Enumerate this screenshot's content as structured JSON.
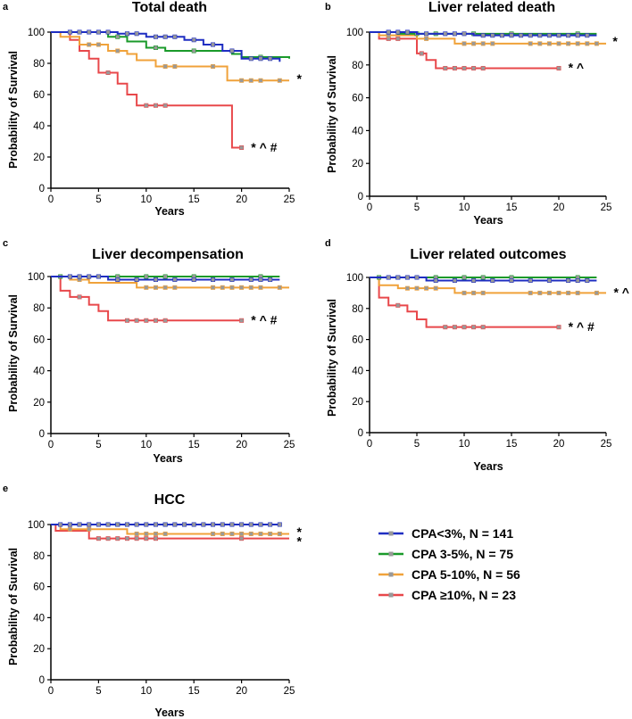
{
  "colors": {
    "cpa_lt3": "#1f2ec2",
    "cpa_3_5": "#1a9a2a",
    "cpa_5_10": "#f0a23a",
    "cpa_ge10": "#e8484b",
    "censor": "#999999"
  },
  "legend": [
    {
      "key": "cpa_lt3",
      "label": "CPA<3%, N = 141"
    },
    {
      "key": "cpa_3_5",
      "label": "CPA 3-5%, N = 75"
    },
    {
      "key": "cpa_5_10",
      "label": "CPA 5-10%, N = 56"
    },
    {
      "key": "cpa_ge10",
      "label": "CPA ≥10%, N = 23"
    }
  ],
  "chart_data": [
    {
      "panel": "a",
      "type": "line",
      "title": "Total death",
      "xlabel": "Years",
      "ylabel": "Probability of Survival",
      "xlim": [
        0,
        25
      ],
      "ylim": [
        0,
        100
      ],
      "xticks": [
        "0",
        "5",
        "10",
        "15",
        "20",
        "25"
      ],
      "yticks": [
        "0",
        "20",
        "40",
        "60",
        "80",
        "100"
      ],
      "series": [
        {
          "key": "cpa_lt3",
          "name": "CPA<3%, N = 141",
          "steps": [
            [
              0,
              100
            ],
            [
              7,
              99
            ],
            [
              10,
              97
            ],
            [
              14,
              95
            ],
            [
              16,
              92
            ],
            [
              18,
              88
            ],
            [
              20,
              83
            ],
            [
              24,
              81
            ]
          ],
          "censor": [
            2,
            3,
            4,
            5,
            6,
            8,
            9,
            11,
            12,
            13,
            15,
            17,
            19,
            21,
            22,
            23
          ]
        },
        {
          "key": "cpa_3_5",
          "name": "CPA 3-5%, N = 75",
          "steps": [
            [
              0,
              100
            ],
            [
              6,
              97
            ],
            [
              8,
              94
            ],
            [
              10,
              90
            ],
            [
              12,
              88
            ],
            [
              19,
              86
            ],
            [
              20,
              84
            ],
            [
              25,
              83
            ]
          ],
          "censor": [
            3,
            5,
            7,
            11,
            15,
            22
          ]
        },
        {
          "key": "cpa_5_10",
          "name": "CPA 5-10%, N = 56",
          "steps": [
            [
              0,
              100
            ],
            [
              1,
              97
            ],
            [
              3,
              92
            ],
            [
              6,
              88
            ],
            [
              8,
              86
            ],
            [
              9,
              82
            ],
            [
              11,
              78
            ],
            [
              18.5,
              69
            ],
            [
              25,
              69
            ]
          ],
          "censor": [
            4,
            5,
            7,
            12,
            13,
            17,
            20,
            21,
            22,
            24
          ]
        },
        {
          "key": "cpa_ge10",
          "name": "CPA ≥10%, N = 23",
          "steps": [
            [
              0,
              100
            ],
            [
              2,
              95
            ],
            [
              3,
              88
            ],
            [
              4,
              83
            ],
            [
              5,
              74
            ],
            [
              7,
              67
            ],
            [
              8,
              60
            ],
            [
              9,
              53
            ],
            [
              19,
              26
            ],
            [
              20,
              26
            ]
          ],
          "censor": [
            6,
            10,
            11,
            12,
            20
          ]
        }
      ],
      "annotations": [
        {
          "text": "*",
          "x": 25.8,
          "y": 71
        },
        {
          "text": "* ^ #",
          "x": 21,
          "y": 27
        }
      ]
    },
    {
      "panel": "b",
      "type": "line",
      "title": "Liver related death",
      "xlabel": "Years",
      "ylabel": "Probability of Survival",
      "xlim": [
        0,
        25
      ],
      "ylim": [
        0,
        100
      ],
      "xticks": [
        "0",
        "5",
        "10",
        "15",
        "20",
        "25"
      ],
      "yticks": [
        "0",
        "20",
        "40",
        "60",
        "80",
        "100"
      ],
      "series": [
        {
          "key": "cpa_lt3",
          "name": "CPA<3%, N = 141",
          "steps": [
            [
              0,
              100
            ],
            [
              5,
              99
            ],
            [
              11,
              98
            ],
            [
              24,
              98
            ]
          ],
          "censor": [
            2,
            3,
            4,
            6,
            8,
            9,
            10,
            12,
            13,
            14,
            15,
            16,
            17,
            18,
            19,
            20,
            21,
            22,
            23
          ]
        },
        {
          "key": "cpa_3_5",
          "name": "CPA 3-5%, N = 75",
          "steps": [
            [
              0,
              100
            ],
            [
              3,
              99
            ],
            [
              24,
              99
            ]
          ],
          "censor": [
            2,
            5,
            7,
            11,
            15,
            22
          ]
        },
        {
          "key": "cpa_5_10",
          "name": "CPA 5-10%, N = 56",
          "steps": [
            [
              0,
              100
            ],
            [
              1,
              98
            ],
            [
              5,
              96
            ],
            [
              9,
              93
            ],
            [
              25,
              93
            ]
          ],
          "censor": [
            2,
            6,
            10,
            11,
            12,
            13,
            17,
            18,
            19,
            20,
            21,
            22,
            23,
            24
          ]
        },
        {
          "key": "cpa_ge10",
          "name": "CPA ≥10%, N = 23",
          "steps": [
            [
              0,
              100
            ],
            [
              1,
              96
            ],
            [
              5,
              87
            ],
            [
              6,
              83
            ],
            [
              7,
              78
            ],
            [
              20,
              78
            ]
          ],
          "censor": [
            2,
            3,
            5.5,
            8,
            9,
            10,
            11,
            12,
            20
          ]
        }
      ],
      "annotations": [
        {
          "text": "*",
          "x": 25.7,
          "y": 95
        },
        {
          "text": "* ^",
          "x": 21,
          "y": 79
        }
      ]
    },
    {
      "panel": "c",
      "type": "line",
      "title": "Liver decompensation",
      "xlabel": "Years",
      "ylabel": "Probability of Survival",
      "xlim": [
        0,
        25
      ],
      "ylim": [
        0,
        100
      ],
      "xticks": [
        "0",
        "5",
        "10",
        "15",
        "20",
        "25"
      ],
      "yticks": [
        "0",
        "20",
        "40",
        "60",
        "80",
        "100"
      ],
      "series": [
        {
          "key": "cpa_lt3",
          "name": "CPA<3%, N = 141",
          "steps": [
            [
              0,
              100
            ],
            [
              6,
              98
            ],
            [
              24,
              98
            ]
          ],
          "censor": [
            2,
            3,
            4,
            5,
            7,
            9,
            11,
            13,
            15,
            17,
            19,
            21,
            22,
            23
          ]
        },
        {
          "key": "cpa_3_5",
          "name": "CPA 3-5%, N = 75",
          "steps": [
            [
              0,
              100
            ],
            [
              24,
              100
            ]
          ],
          "censor": [
            1,
            3,
            5,
            7,
            10,
            12,
            15,
            22
          ]
        },
        {
          "key": "cpa_5_10",
          "name": "CPA 5-10%, N = 56",
          "steps": [
            [
              0,
              100
            ],
            [
              2,
              98
            ],
            [
              4,
              96
            ],
            [
              9,
              93
            ],
            [
              25,
              93
            ]
          ],
          "censor": [
            3,
            10,
            11,
            12,
            13,
            17,
            18,
            19,
            20,
            21,
            22,
            24
          ]
        },
        {
          "key": "cpa_ge10",
          "name": "CPA ≥10%, N = 23",
          "steps": [
            [
              0,
              100
            ],
            [
              1,
              91
            ],
            [
              2,
              87
            ],
            [
              4,
              82
            ],
            [
              5,
              78
            ],
            [
              6,
              72
            ],
            [
              20,
              72
            ]
          ],
          "censor": [
            3,
            8,
            9,
            10,
            11,
            12,
            20
          ]
        }
      ],
      "annotations": [
        {
          "text": "* ^ #",
          "x": 21,
          "y": 73
        }
      ]
    },
    {
      "panel": "d",
      "type": "line",
      "title": "Liver related outcomes",
      "xlabel": "Years",
      "ylabel": "Probability of Survival",
      "xlim": [
        0,
        25
      ],
      "ylim": [
        0,
        100
      ],
      "xticks": [
        "0",
        "5",
        "10",
        "15",
        "20",
        "25"
      ],
      "yticks": [
        "0",
        "20",
        "40",
        "60",
        "80",
        "100"
      ],
      "series": [
        {
          "key": "cpa_lt3",
          "name": "CPA<3%, N = 141",
          "steps": [
            [
              0,
              100
            ],
            [
              6,
              98
            ],
            [
              24,
              98
            ]
          ],
          "censor": [
            2,
            3,
            4,
            5,
            7,
            9,
            11,
            13,
            15,
            17,
            19,
            21,
            22,
            23
          ]
        },
        {
          "key": "cpa_3_5",
          "name": "CPA 3-5%, N = 75",
          "steps": [
            [
              0,
              100
            ],
            [
              24,
              100
            ]
          ],
          "censor": [
            1,
            3,
            5,
            7,
            10,
            12,
            15,
            22
          ]
        },
        {
          "key": "cpa_5_10",
          "name": "CPA 5-10%, N = 56",
          "steps": [
            [
              0,
              100
            ],
            [
              1,
              95
            ],
            [
              3,
              93
            ],
            [
              9,
              90
            ],
            [
              25,
              90
            ]
          ],
          "censor": [
            4,
            5,
            6,
            7,
            10,
            11,
            12,
            17,
            18,
            19,
            20,
            21,
            22,
            24
          ]
        },
        {
          "key": "cpa_ge10",
          "name": "CPA ≥10%, N = 23",
          "steps": [
            [
              0,
              100
            ],
            [
              1,
              87
            ],
            [
              2,
              82
            ],
            [
              4,
              78
            ],
            [
              5,
              73
            ],
            [
              6,
              68
            ],
            [
              20,
              68
            ]
          ],
          "censor": [
            3,
            8,
            9,
            10,
            11,
            12,
            20
          ]
        }
      ],
      "annotations": [
        {
          "text": "* ^",
          "x": 25.8,
          "y": 91
        },
        {
          "text": "* ^ #",
          "x": 21,
          "y": 69
        }
      ]
    },
    {
      "panel": "e",
      "type": "line",
      "title": "HCC",
      "xlabel": "Years",
      "ylabel": "Probability of Survival",
      "xlim": [
        0,
        25
      ],
      "ylim": [
        0,
        100
      ],
      "xticks": [
        "0",
        "5",
        "10",
        "15",
        "20",
        "25"
      ],
      "yticks": [
        "0",
        "20",
        "40",
        "60",
        "80",
        "100"
      ],
      "series": [
        {
          "key": "cpa_lt3",
          "name": "CPA<3%, N = 141",
          "steps": [
            [
              0,
              100
            ],
            [
              24,
              100
            ]
          ],
          "censor": [
            1,
            2,
            3,
            4,
            5,
            6,
            7,
            8,
            9,
            10,
            11,
            12,
            13,
            14,
            15,
            16,
            17,
            18,
            19,
            20,
            21,
            22,
            23,
            24
          ]
        },
        {
          "key": "cpa_3_5",
          "name": "CPA 3-5%, N = 75",
          "steps": [
            [
              0,
              100
            ],
            [
              24,
              100
            ]
          ],
          "censor": [
            3,
            7,
            12,
            22
          ]
        },
        {
          "key": "cpa_5_10",
          "name": "CPA 5-10%, N = 56",
          "steps": [
            [
              0,
              100
            ],
            [
              1,
              97
            ],
            [
              8,
              94
            ],
            [
              25,
              94
            ]
          ],
          "censor": [
            2,
            4,
            9,
            10,
            11,
            12,
            17,
            18,
            19,
            20,
            21,
            22,
            23,
            24
          ]
        },
        {
          "key": "cpa_ge10",
          "name": "CPA ≥10%, N = 23",
          "steps": [
            [
              0,
              100
            ],
            [
              0.5,
              96
            ],
            [
              4,
              91
            ],
            [
              25,
              91
            ]
          ],
          "censor": [
            5,
            6,
            7,
            8,
            9,
            10,
            11,
            20
          ]
        }
      ],
      "annotations": [
        {
          "text": "*",
          "x": 25.8,
          "y": 96
        },
        {
          "text": "*",
          "x": 25.8,
          "y": 90
        }
      ]
    }
  ]
}
